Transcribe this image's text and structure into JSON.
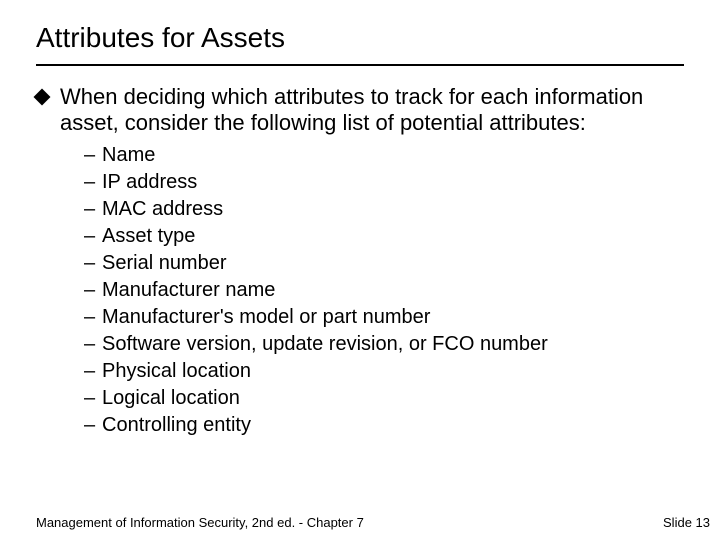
{
  "slide": {
    "title": "Attributes for Assets",
    "intro": "When deciding which attributes to track for each information asset, consider the following list of potential attributes:",
    "items": [
      "Name",
      "IP address",
      "MAC address",
      "Asset type",
      "Serial number",
      "Manufacturer name",
      "Manufacturer's model or part number",
      "Software version, update revision, or FCO number",
      "Physical location",
      "Logical location",
      "Controlling entity"
    ],
    "footer_left": "Management of Information Security, 2nd ed. - Chapter 7",
    "footer_right": "Slide 13"
  },
  "style": {
    "background_color": "#ffffff",
    "text_color": "#000000",
    "title_fontsize": 28,
    "body_fontsize": 22,
    "sub_fontsize": 20,
    "footer_fontsize": 13,
    "bullet_shape": "diamond",
    "sub_bullet": "–",
    "hr_color": "#000000",
    "font_family": "Arial"
  }
}
